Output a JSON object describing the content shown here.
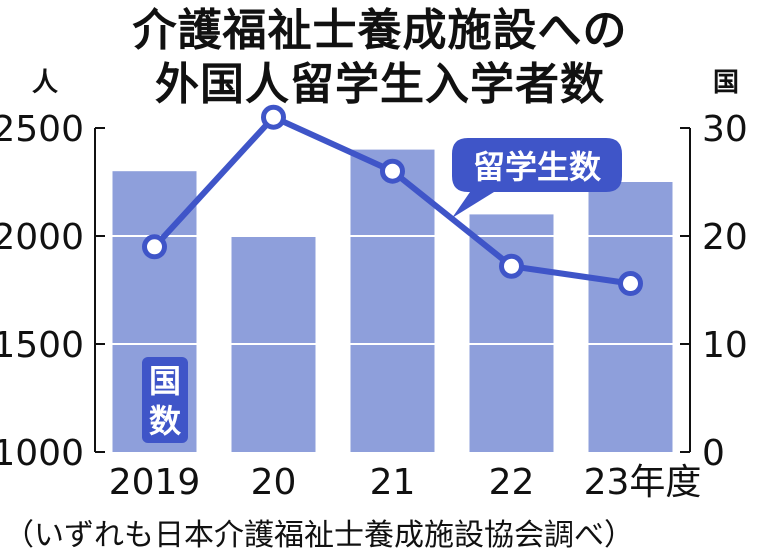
{
  "title_line1": "介護福祉士養成施設への",
  "title_line2": "外国人留学生入学者数",
  "left_unit": "人",
  "right_unit": "国",
  "line_label": "留学生数",
  "bar_label": "国\n数",
  "source": "（いずれも日本介護福祉士養成施設協会調べ）",
  "colors": {
    "bar": "#8e9fdb",
    "line": "#3f55c8",
    "grid": "#ffffff",
    "text": "#111111"
  },
  "chart_data": {
    "type": "bar+line",
    "categories": [
      "2019",
      "20",
      "21",
      "22",
      "23年度"
    ],
    "series": [
      {
        "name": "留学生数",
        "type": "line",
        "axis": "left",
        "values": [
          1950,
          2550,
          2300,
          1860,
          1780
        ]
      },
      {
        "name": "国数",
        "type": "bar",
        "axis": "right",
        "values": [
          26,
          20,
          28,
          22,
          25
        ]
      }
    ],
    "left_axis": {
      "ylim": [
        1000,
        2500
      ],
      "ticks": [
        "1000",
        "1500",
        "2000",
        "2500"
      ]
    },
    "right_axis": {
      "ylim": [
        0,
        30
      ],
      "ticks": [
        "0",
        "10",
        "20",
        "30"
      ]
    },
    "grid": true
  }
}
